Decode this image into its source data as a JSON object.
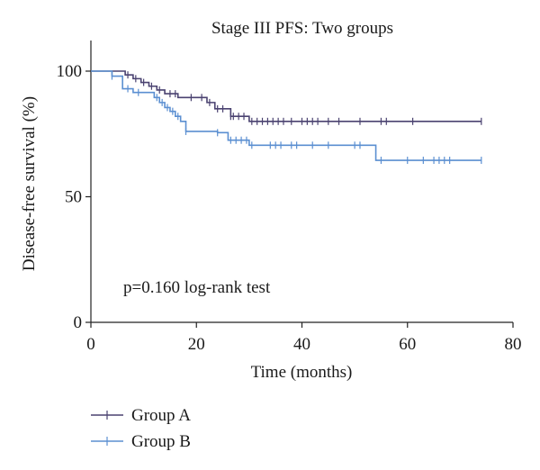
{
  "chart_data": {
    "type": "line",
    "title": "Stage III PFS: Two groups",
    "xlabel": "Time (months)",
    "ylabel": "Disease-free survival (%)",
    "xlim": [
      0,
      80
    ],
    "ylim": [
      0,
      100
    ],
    "xticks": [
      0,
      20,
      40,
      60,
      80
    ],
    "yticks": [
      0,
      50,
      100
    ],
    "grid": false,
    "legend_position": "bottom-left",
    "annotation": "p=0.160 log-rank test",
    "series": [
      {
        "name": "Group A",
        "color": "#4a4270",
        "steps": [
          [
            0,
            100
          ],
          [
            6.5,
            98.5
          ],
          [
            8,
            97
          ],
          [
            9.5,
            95.5
          ],
          [
            11,
            94
          ],
          [
            12.5,
            92.5
          ],
          [
            14,
            91
          ],
          [
            16.5,
            89.5
          ],
          [
            22,
            87.5
          ],
          [
            23.5,
            85
          ],
          [
            26.5,
            82
          ],
          [
            30,
            80
          ],
          [
            74,
            80
          ]
        ],
        "censored": [
          [
            7,
            98.5
          ],
          [
            8.5,
            97
          ],
          [
            10,
            95.5
          ],
          [
            11.5,
            94
          ],
          [
            13,
            92.5
          ],
          [
            15,
            91
          ],
          [
            16,
            91
          ],
          [
            19,
            89.5
          ],
          [
            21,
            89.5
          ],
          [
            22.5,
            87.5
          ],
          [
            24,
            85
          ],
          [
            25,
            85
          ],
          [
            26.5,
            82
          ],
          [
            27,
            82
          ],
          [
            28,
            82
          ],
          [
            29,
            82
          ],
          [
            30.5,
            80
          ],
          [
            31.5,
            80
          ],
          [
            32.5,
            80
          ],
          [
            33.5,
            80
          ],
          [
            34.5,
            80
          ],
          [
            35.5,
            80
          ],
          [
            36.5,
            80
          ],
          [
            38,
            80
          ],
          [
            40,
            80
          ],
          [
            41,
            80
          ],
          [
            42,
            80
          ],
          [
            43,
            80
          ],
          [
            45,
            80
          ],
          [
            47,
            80
          ],
          [
            51,
            80
          ],
          [
            55,
            80
          ],
          [
            56,
            80
          ],
          [
            61,
            80
          ],
          [
            74,
            80
          ]
        ]
      },
      {
        "name": "Group B",
        "color": "#5b8fd1",
        "steps": [
          [
            0,
            100
          ],
          [
            4,
            98
          ],
          [
            6,
            93
          ],
          [
            8,
            91.5
          ],
          [
            12,
            89.5
          ],
          [
            13,
            87.5
          ],
          [
            14,
            85.5
          ],
          [
            15,
            84
          ],
          [
            16,
            82
          ],
          [
            17,
            80
          ],
          [
            18,
            76
          ],
          [
            24,
            75.5
          ],
          [
            26,
            72.5
          ],
          [
            30,
            70.5
          ],
          [
            54,
            70.5
          ],
          [
            54,
            64.5
          ],
          [
            74,
            64.5
          ]
        ],
        "censored": [
          [
            4,
            98
          ],
          [
            7,
            93
          ],
          [
            9,
            91.5
          ],
          [
            12.5,
            89.5
          ],
          [
            13.5,
            87.5
          ],
          [
            14.5,
            85.5
          ],
          [
            15.5,
            84
          ],
          [
            16.5,
            82
          ],
          [
            18,
            76
          ],
          [
            24,
            75.5
          ],
          [
            26.5,
            72.5
          ],
          [
            27.5,
            72.5
          ],
          [
            28.5,
            72.5
          ],
          [
            29.5,
            72.5
          ],
          [
            30.5,
            70.5
          ],
          [
            34,
            70.5
          ],
          [
            35,
            70.5
          ],
          [
            36,
            70.5
          ],
          [
            38,
            70.5
          ],
          [
            39,
            70.5
          ],
          [
            42,
            70.5
          ],
          [
            45,
            70.5
          ],
          [
            50,
            70.5
          ],
          [
            51,
            70.5
          ],
          [
            55,
            64.5
          ],
          [
            60,
            64.5
          ],
          [
            63,
            64.5
          ],
          [
            65,
            64.5
          ],
          [
            66,
            64.5
          ],
          [
            67,
            64.5
          ],
          [
            68,
            64.5
          ],
          [
            74,
            64.5
          ]
        ]
      }
    ]
  }
}
